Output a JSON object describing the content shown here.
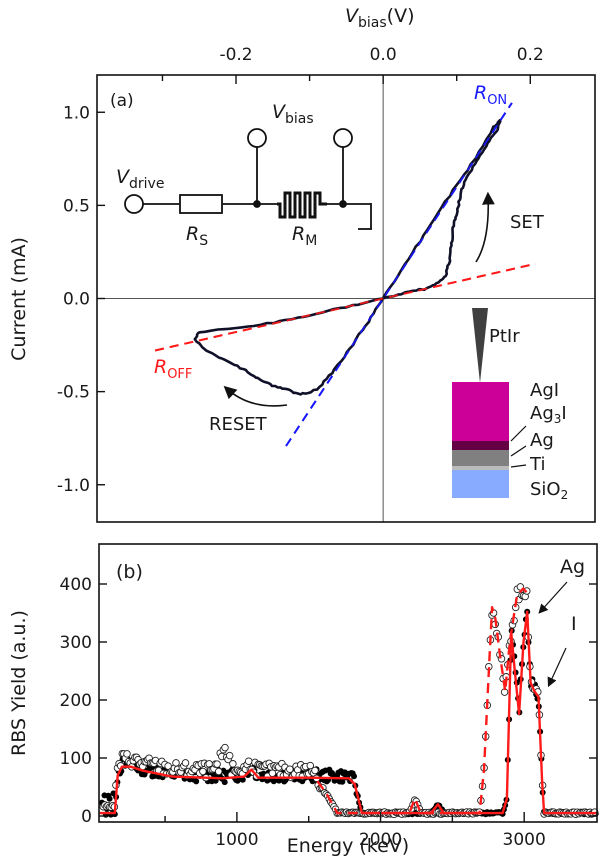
{
  "chart_data": [
    {
      "type": "line",
      "panel_label": "(a)",
      "title": "",
      "xlabel_top": {
        "main": "V",
        "sub": "bias",
        "unit": "(V)"
      },
      "ylabel": "Current (mA)",
      "xlim": [
        -0.389,
        0.288
      ],
      "ylim": [
        -1.2,
        1.2
      ],
      "x_ticks": [
        -0.3,
        -0.2,
        -0.1,
        0.0,
        0.1,
        0.2
      ],
      "x_tick_labels": [
        {
          "value": -0.2,
          "label": "-0.2"
        },
        {
          "value": 0.0,
          "label": "0.0"
        },
        {
          "value": 0.2,
          "label": "0.2"
        }
      ],
      "y_ticks": [
        {
          "value": 1.0,
          "label": "1.0"
        },
        {
          "value": 0.5,
          "label": "0.5"
        },
        {
          "value": 0.0,
          "label": "0.0"
        },
        {
          "value": -0.5,
          "label": "-0.5"
        },
        {
          "value": -1.0,
          "label": "-1.0"
        }
      ],
      "grid": false,
      "series": [
        {
          "name": "I-V hysteresis loop",
          "color": "#101028",
          "style": "solid",
          "points": [
            [
              0.0,
              0.0
            ],
            [
              0.03,
              0.03
            ],
            [
              0.06,
              0.055
            ],
            [
              0.075,
              0.085
            ],
            [
              0.085,
              0.12
            ],
            [
              0.09,
              0.2
            ],
            [
              0.093,
              0.3
            ],
            [
              0.095,
              0.38
            ],
            [
              0.1,
              0.45
            ],
            [
              0.105,
              0.55
            ],
            [
              0.11,
              0.62
            ],
            [
              0.125,
              0.72
            ],
            [
              0.14,
              0.82
            ],
            [
              0.155,
              0.9
            ],
            [
              0.159,
              0.962
            ],
            [
              0.15,
              0.92
            ],
            [
              0.12,
              0.72
            ],
            [
              0.09,
              0.55
            ],
            [
              0.06,
              0.37
            ],
            [
              0.03,
              0.18
            ],
            [
              0.0,
              0.0
            ],
            [
              -0.02,
              -0.12
            ],
            [
              -0.045,
              -0.27
            ],
            [
              -0.07,
              -0.4
            ],
            [
              -0.09,
              -0.49
            ],
            [
              -0.113,
              -0.516
            ],
            [
              -0.13,
              -0.49
            ],
            [
              -0.15,
              -0.47
            ],
            [
              -0.17,
              -0.43
            ],
            [
              -0.19,
              -0.38
            ],
            [
              -0.215,
              -0.33
            ],
            [
              -0.24,
              -0.28
            ],
            [
              -0.256,
              -0.22
            ],
            [
              -0.25,
              -0.18
            ],
            [
              -0.2,
              -0.16
            ],
            [
              -0.15,
              -0.13
            ],
            [
              -0.1,
              -0.09
            ],
            [
              -0.05,
              -0.045
            ],
            [
              0.0,
              0.0
            ]
          ]
        },
        {
          "name": "R_ON fit",
          "color": "#1a1aff",
          "style": "dashed",
          "slope_mA_per_V": 6.0,
          "x_range": [
            -0.132,
            0.175
          ]
        },
        {
          "name": "R_OFF fit",
          "color": "#ff1a1a",
          "style": "dashed",
          "slope_mA_per_V": 0.9,
          "x_range": [
            -0.31,
            0.207
          ]
        }
      ],
      "annotations": [
        {
          "text": "SET",
          "near": "right-middle"
        },
        {
          "text": "RESET",
          "near": "lower-left"
        },
        {
          "text_main": "R",
          "text_sub": "ON",
          "color": "#1a1aff"
        },
        {
          "text_main": "R",
          "text_sub": "OFF",
          "color": "#ff1a1a"
        }
      ],
      "circuit_inset": {
        "v_drive": {
          "main": "V",
          "sub": "drive"
        },
        "v_bias": {
          "main": "V",
          "sub": "bias"
        },
        "r_s": {
          "main": "R",
          "sub": "S"
        },
        "r_m": {
          "main": "R",
          "sub": "M"
        }
      },
      "layer_inset": {
        "tip": "PtIr",
        "layers": [
          {
            "name": "AgI",
            "color": "#cc0099"
          },
          {
            "name": "Ag3I",
            "label_main": "Ag",
            "label_sub": "3",
            "label_tail": "I",
            "color": "#660044"
          },
          {
            "name": "Ag",
            "color": "#808080"
          },
          {
            "name": "Ti",
            "color": "#bbbbbb"
          },
          {
            "name": "SiO2",
            "label_main": "SiO",
            "label_sub": "2",
            "color": "#88aaff"
          }
        ]
      }
    },
    {
      "type": "scatter",
      "panel_label": "(b)",
      "title": "",
      "xlabel": "Energy (keV)",
      "ylabel": "RBS Yield (a.u.)",
      "xlim": [
        40,
        3507
      ],
      "ylim": [
        0,
        469
      ],
      "x_ticks": [
        500,
        1000,
        1500,
        2000,
        2500,
        3000
      ],
      "x_tick_labels": [
        {
          "value": 1000,
          "label": "1000"
        },
        {
          "value": 2000,
          "label": "2000"
        },
        {
          "value": 3000,
          "label": "3000"
        }
      ],
      "y_ticks": [
        {
          "value": 0,
          "label": "0"
        },
        {
          "value": 100,
          "label": "100"
        },
        {
          "value": 200,
          "label": "200"
        },
        {
          "value": 300,
          "label": "300"
        },
        {
          "value": 400,
          "label": "400"
        }
      ],
      "grid": false,
      "series": [
        {
          "name": "fit (solid)",
          "color": "#ff1a1a",
          "style": "solid",
          "points": [
            [
              40,
              5
            ],
            [
              150,
              5
            ],
            [
              170,
              70
            ],
            [
              200,
              85
            ],
            [
              260,
              85
            ],
            [
              350,
              78
            ],
            [
              550,
              68
            ],
            [
              900,
              65
            ],
            [
              1050,
              68
            ],
            [
              1100,
              80
            ],
            [
              1150,
              66
            ],
            [
              1500,
              66
            ],
            [
              1780,
              65
            ],
            [
              1820,
              55
            ],
            [
              1870,
              5
            ],
            [
              2350,
              5
            ],
            [
              2400,
              20
            ],
            [
              2440,
              5
            ],
            [
              2850,
              5
            ],
            [
              2880,
              30
            ],
            [
              2910,
              317
            ],
            [
              2935,
              250
            ],
            [
              2965,
              176
            ],
            [
              2995,
              300
            ],
            [
              3021,
              352
            ],
            [
              3045,
              230
            ],
            [
              3069,
              216
            ],
            [
              3100,
              205
            ],
            [
              3125,
              60
            ],
            [
              3139,
              5
            ],
            [
              3507,
              5
            ]
          ]
        },
        {
          "name": "fit (dashed)",
          "color": "#ff1a1a",
          "style": "dashed",
          "points": [
            [
              1560,
              60
            ],
            [
              1620,
              40
            ],
            [
              1700,
              5
            ],
            [
              2200,
              5
            ],
            [
              2240,
              30
            ],
            [
              2280,
              5
            ],
            [
              2690,
              5
            ],
            [
              2720,
              80
            ],
            [
              2760,
              280
            ],
            [
              2777,
              360
            ],
            [
              2800,
              340
            ],
            [
              2830,
              280
            ],
            [
              2868,
              215
            ],
            [
              2900,
              300
            ],
            [
              2950,
              380
            ],
            [
              2993,
              392
            ],
            [
              3020,
              385
            ]
          ]
        },
        {
          "name": "data (filled)",
          "marker": "filled-circle",
          "color": "#000000"
        },
        {
          "name": "data (open)",
          "marker": "open-circle",
          "color": "#000000"
        }
      ],
      "annotations": [
        {
          "text": "Ag",
          "arrow_to": [
            3021,
            352
          ]
        },
        {
          "text": "I",
          "arrow_to": [
            3069,
            216
          ]
        }
      ]
    }
  ]
}
